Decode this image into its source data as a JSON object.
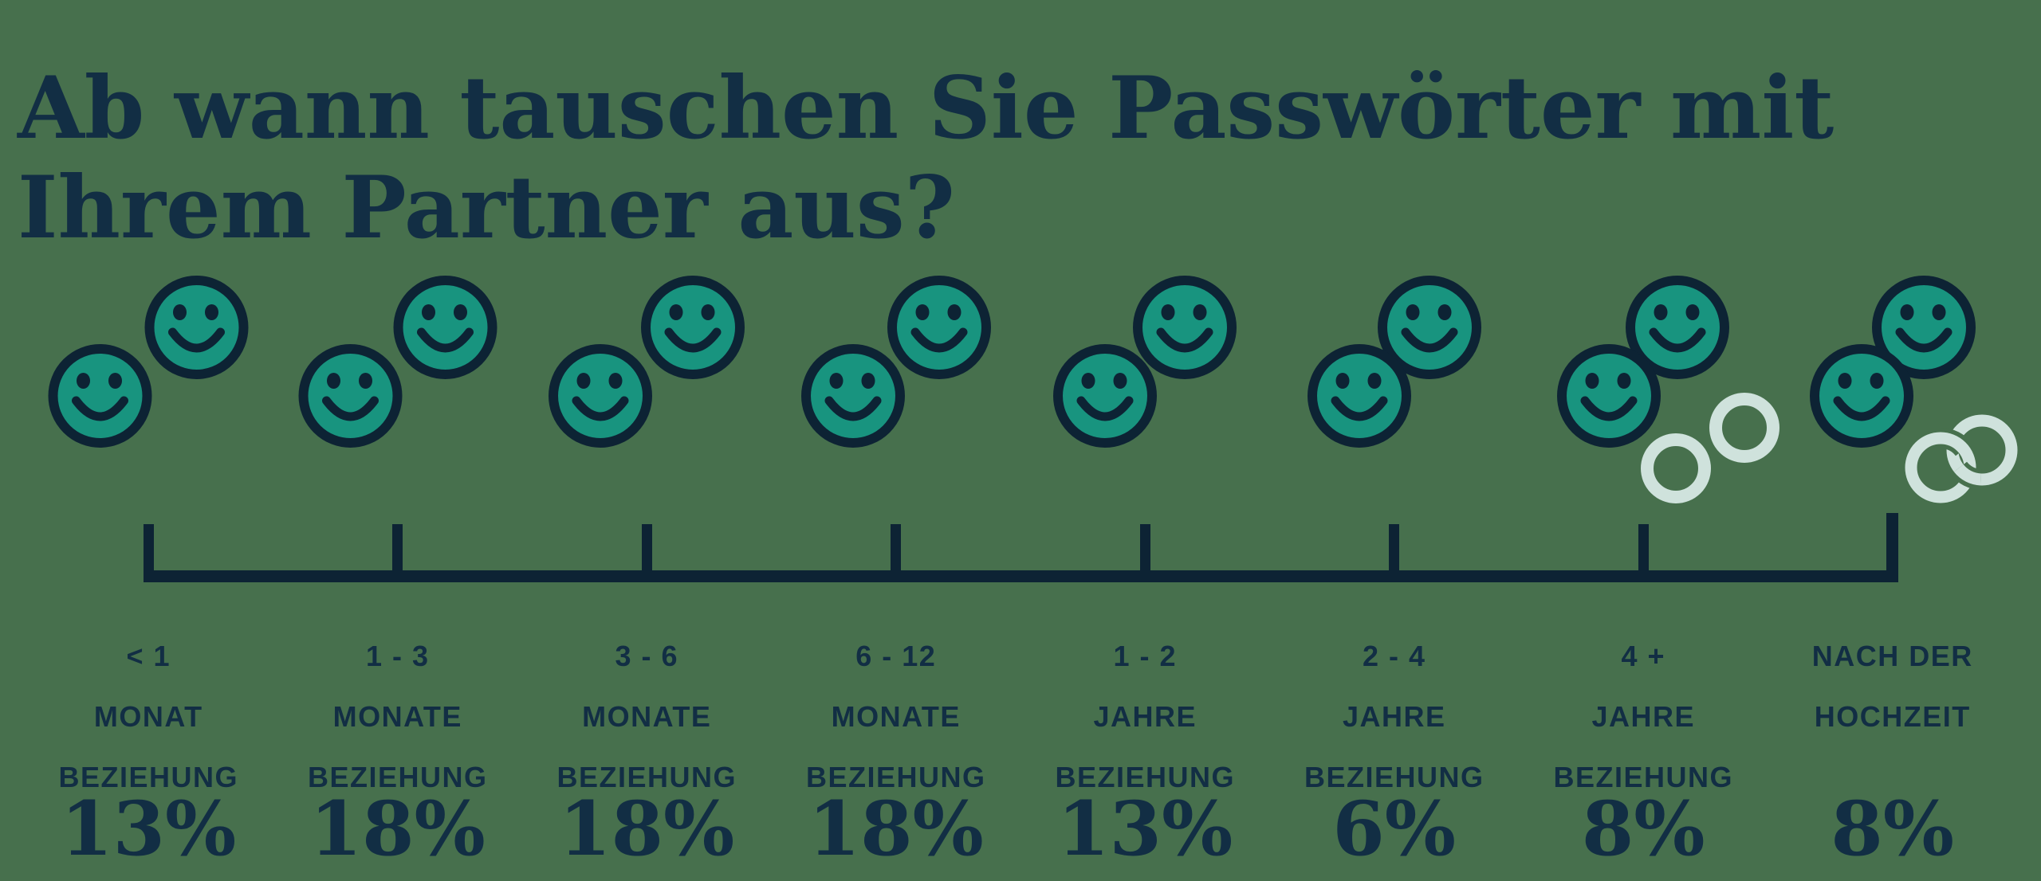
{
  "title": {
    "line1": "Ab wann tauschen Sie Passwörter mit",
    "line2": "Ihrem Partner aus?",
    "full": "Ab wann tauschen Sie Passwörter mit Ihrem Partner aus?"
  },
  "colors": {
    "background": "#47704D",
    "face_fill": "#18947F",
    "icon_outline": "#0D2334",
    "text": "#122E44",
    "axis": "#0D2334",
    "ring": "#CFE2DC"
  },
  "chart_data": {
    "type": "bar",
    "variant": "pictogram-timeline",
    "title": "Ab wann tauschen Sie Passwörter mit Ihrem Partner aus?",
    "unit": "%",
    "legend": "none",
    "axis": "horizontal timeline with 8 ticks, one per category",
    "categories": [
      {
        "label": "< 1 Monat Beziehung",
        "label_lines": [
          "< 1",
          "MONAT",
          "BEZIEHUNG"
        ],
        "value": 13,
        "value_label": "13%",
        "icon": {
          "name": "couple-smileys",
          "face_gap": 121,
          "rings": "none"
        }
      },
      {
        "label": "1 - 3 Monate Beziehung",
        "label_lines": [
          "1 - 3",
          "MONATE",
          "BEZIEHUNG"
        ],
        "value": 18,
        "value_label": "18%",
        "icon": {
          "name": "couple-smileys",
          "face_gap": 119,
          "rings": "none"
        }
      },
      {
        "label": "3 - 6 Monate Beziehung",
        "label_lines": [
          "3 - 6",
          "MONATE",
          "BEZIEHUNG"
        ],
        "value": 18,
        "value_label": "18%",
        "icon": {
          "name": "couple-smileys",
          "face_gap": 116,
          "rings": "none"
        }
      },
      {
        "label": "6 - 12 Monate Beziehung",
        "label_lines": [
          "6 - 12",
          "MONATE",
          "BEZIEHUNG"
        ],
        "value": 18,
        "value_label": "18%",
        "icon": {
          "name": "couple-smileys",
          "face_gap": 108,
          "rings": "none"
        }
      },
      {
        "label": "1 - 2 Jahre Beziehung",
        "label_lines": [
          "1 - 2",
          "JAHRE",
          "BEZIEHUNG"
        ],
        "value": 13,
        "value_label": "13%",
        "icon": {
          "name": "couple-smileys",
          "face_gap": 100,
          "rings": "none"
        }
      },
      {
        "label": "2 - 4 Jahre Beziehung",
        "label_lines": [
          "2 - 4",
          "JAHRE",
          "BEZIEHUNG"
        ],
        "value": 6,
        "value_label": "6%",
        "icon": {
          "name": "couple-smileys",
          "face_gap": 88,
          "rings": "none"
        }
      },
      {
        "label": "4 + Jahre Beziehung",
        "label_lines": [
          "4 +",
          "JAHRE",
          "BEZIEHUNG"
        ],
        "value": 8,
        "value_label": "8%",
        "icon": {
          "name": "couple-smileys-with-rings",
          "face_gap": 86,
          "rings": "separate"
        }
      },
      {
        "label": "Nach der Hochzeit",
        "label_lines": [
          "NACH DER",
          "HOCHZEIT"
        ],
        "value": 8,
        "value_label": "8%",
        "icon": {
          "name": "couple-smileys-with-wedding-rings",
          "face_gap": 78,
          "rings": "interlocked"
        }
      }
    ]
  }
}
